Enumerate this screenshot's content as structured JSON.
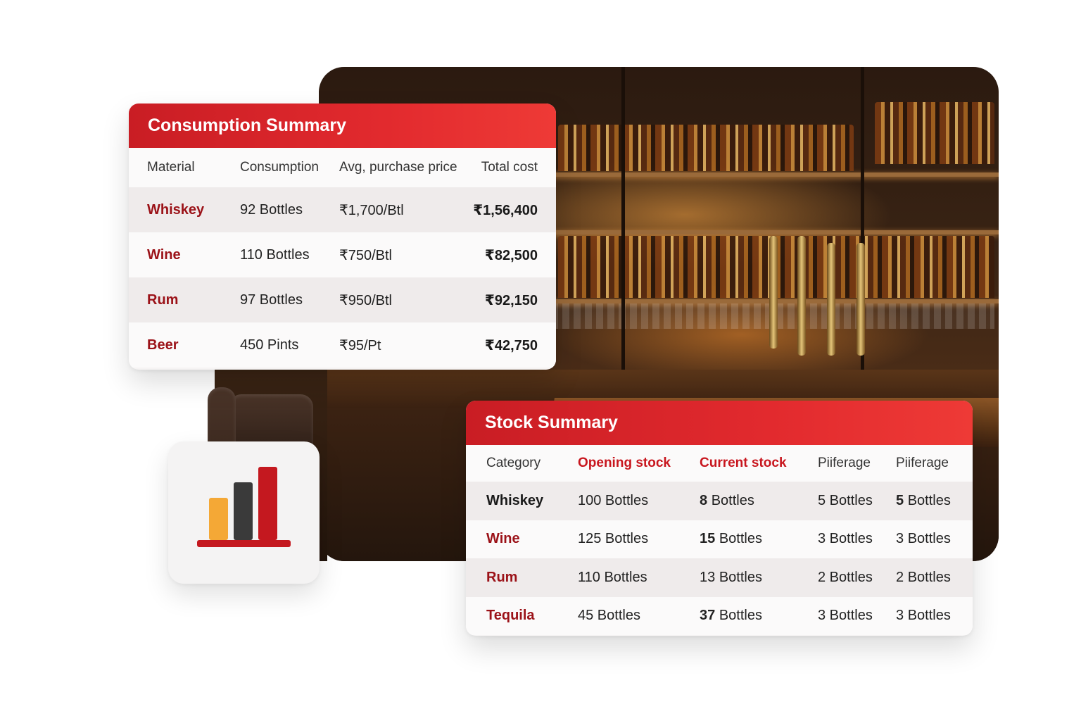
{
  "colors": {
    "accent": "#c91d24",
    "material_text": "#9b1218",
    "icon_bar_1": "#f4a836",
    "icon_bar_2": "#3a3a3a",
    "icon_bar_3": "#c4181f"
  },
  "consumption": {
    "title": "Consumption Summary",
    "columns": [
      "Material",
      "Consumption",
      "Avg, purchase price",
      "Total cost"
    ],
    "rows": [
      {
        "material": "Whiskey",
        "consumption": "92 Bottles",
        "price": "₹1,700/Btl",
        "total": "₹1,56,400"
      },
      {
        "material": "Wine",
        "consumption": "110 Bottles",
        "price": "₹750/Btl",
        "total": "₹82,500"
      },
      {
        "material": "Rum",
        "consumption": "97 Bottles",
        "price": "₹950/Btl",
        "total": "₹92,150"
      },
      {
        "material": "Beer",
        "consumption": "450 Pints",
        "price": "₹95/Pt",
        "total": "₹42,750"
      }
    ]
  },
  "stock": {
    "title": "Stock Summary",
    "columns": [
      "Category",
      "Opening stock",
      "Current stock",
      "Piiferage",
      "Piiferage"
    ],
    "rows": [
      {
        "category": "Whiskey",
        "opening": "100 Bottles",
        "current_num": "8",
        "current_unit": "Bottles",
        "pilf1": "5 Bottles",
        "pilf2_num": "5",
        "pilf2_unit": "Bottles"
      },
      {
        "category": "Wine",
        "opening": "125 Bottles",
        "current_num": "15",
        "current_unit": "Bottles",
        "pilf1": "3 Bottles",
        "pilf2_num": "3",
        "pilf2_unit": "Bottles"
      },
      {
        "category": "Rum",
        "opening": "110 Bottles",
        "current_num": "13",
        "current_unit": "Bottles",
        "pilf1": "2 Bottles",
        "pilf2_num": "2",
        "pilf2_unit": "Bottles"
      },
      {
        "category": "Tequila",
        "opening": "45 Bottles",
        "current_num": "37",
        "current_unit": "Bottles",
        "pilf1": "3 Bottles",
        "pilf2_num": "3",
        "pilf2_unit": "Bottles"
      }
    ]
  },
  "chart_icon": {
    "name": "bar-chart-icon",
    "levels": [
      0.58,
      0.79,
      1.0
    ]
  }
}
